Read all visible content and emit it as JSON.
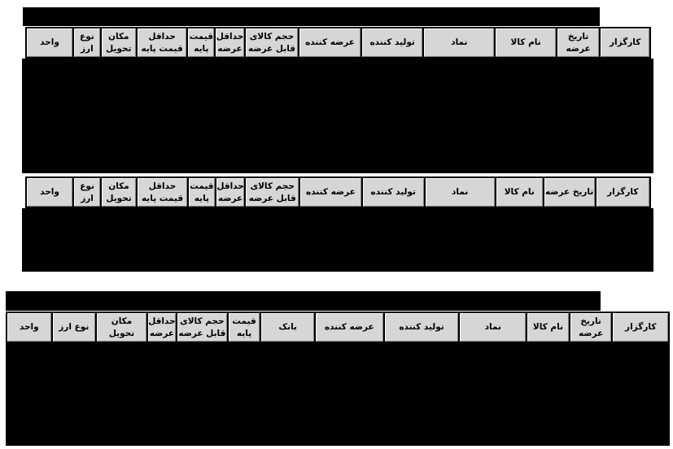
{
  "page": {
    "background": "#ffffff",
    "redaction_color": "#000000",
    "header_cell_bg": "#d6d6d6",
    "header_text_color": "#000000",
    "direction": "rtl"
  },
  "tables": [
    {
      "name": "upper-supply-table",
      "columns": [
        "کارگزار",
        "تاریخ\nعرضه",
        "نام کالا",
        "نماد",
        "تولید کننده",
        "عرضه کننده",
        "حجم کالای\nقابل عرضه",
        "حداقل\nعرضه",
        "قیمت\nپایه",
        "حداقل\nقیمت پایه",
        "مکان\nتحویل",
        "نوع\nارز",
        "واحد"
      ]
    },
    {
      "name": "middle-supply-table",
      "columns": [
        "کارگزار",
        "تاریخ عرضه",
        "نام کالا",
        "نماد",
        "تولید کننده",
        "عرضه کننده",
        "حجم کالای\nقابل عرضه",
        "حداقل\nعرضه",
        "قیمت\nپایه",
        "حداقل\nقیمت پایه",
        "مکان\nتحویل",
        "نوع\nارز",
        "واحد"
      ]
    },
    {
      "name": "lower-supply-table",
      "columns": [
        "کارگزار",
        "تاریخ\nعرضه",
        "نام کالا",
        "نماد",
        "تولید کننده",
        "عرضه کننده",
        "بانک",
        "قیمت\nپایه",
        "حجم کالای\nقابل عرضه",
        "حداقل\nعرضه",
        "مکان تحویل",
        "نوع ارز",
        "واحد"
      ]
    }
  ]
}
